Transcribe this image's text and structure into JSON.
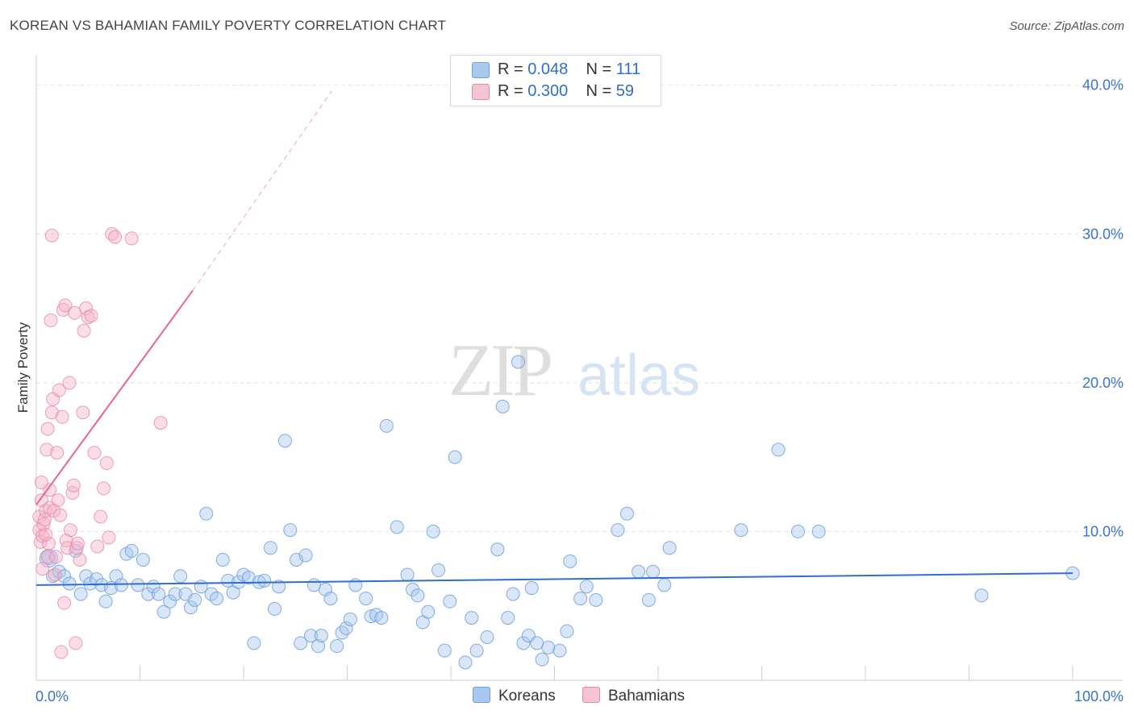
{
  "header": {
    "title": "KOREAN VS BAHAMIAN FAMILY POVERTY CORRELATION CHART",
    "source": "Source: ZipAtlas.com"
  },
  "watermark": {
    "zip": "ZIP",
    "atlas": "atlas"
  },
  "legend": {
    "koreans": {
      "r_label": "R =",
      "r_value": "0.048",
      "n_label": "N =",
      "n_value": "111"
    },
    "bahamians": {
      "r_label": "R =",
      "r_value": "0.300",
      "n_label": "N =",
      "n_value": "59"
    }
  },
  "bottom_legend": {
    "koreans": "Koreans",
    "bahamians": "Bahamians"
  },
  "colors": {
    "korean_fill": "#a9c8f0",
    "korean_stroke": "#6f9fdc",
    "korean_line": "#2c6fcf",
    "bahamian_fill": "#f5b3c8",
    "bahamian_stroke": "#e888a8",
    "bahamian_line": "#e8668e",
    "axis_text": "#3a73c8",
    "grid": "#e3e3e3"
  },
  "chart_data": {
    "type": "scatter",
    "title": "KOREAN VS BAHAMIAN FAMILY POVERTY CORRELATION CHART",
    "xlabel": "",
    "ylabel": "Family Poverty",
    "xlim": [
      0,
      100
    ],
    "ylim": [
      0,
      41.5
    ],
    "x_tick_labels": [
      {
        "value": 0,
        "label": "0.0%"
      },
      {
        "value": 100,
        "label": "100.0%"
      }
    ],
    "y_tick_labels": [
      {
        "value": 10,
        "label": "10.0%"
      },
      {
        "value": 20,
        "label": "20.0%"
      },
      {
        "value": 30,
        "label": "30.0%"
      },
      {
        "value": 40,
        "label": "40.0%"
      }
    ],
    "grid": true,
    "legend_position": "top-center",
    "series": [
      {
        "name": "Koreans",
        "r": 0.048,
        "n": 111,
        "trend": {
          "x": [
            0,
            100
          ],
          "y": [
            6.4,
            7.2
          ]
        },
        "points": [
          [
            1.2,
            8.2
          ],
          [
            1.6,
            7.0
          ],
          [
            2.2,
            7.3
          ],
          [
            2.7,
            7.0
          ],
          [
            3.2,
            6.5
          ],
          [
            3.8,
            8.7
          ],
          [
            4.3,
            5.8
          ],
          [
            4.8,
            7.0
          ],
          [
            5.2,
            6.5
          ],
          [
            5.8,
            6.8
          ],
          [
            6.3,
            6.4
          ],
          [
            6.7,
            5.3
          ],
          [
            7.2,
            6.2
          ],
          [
            7.7,
            7.0
          ],
          [
            8.2,
            6.4
          ],
          [
            8.7,
            8.5
          ],
          [
            9.2,
            8.7
          ],
          [
            9.8,
            6.4
          ],
          [
            10.3,
            8.1
          ],
          [
            10.8,
            5.8
          ],
          [
            11.3,
            6.3
          ],
          [
            11.8,
            5.8
          ],
          [
            12.3,
            4.6
          ],
          [
            12.9,
            5.3
          ],
          [
            13.4,
            5.8
          ],
          [
            13.9,
            7.0
          ],
          [
            14.4,
            5.8
          ],
          [
            14.9,
            4.9
          ],
          [
            15.3,
            5.4
          ],
          [
            15.9,
            6.3
          ],
          [
            16.4,
            11.2
          ],
          [
            16.9,
            5.8
          ],
          [
            17.4,
            5.5
          ],
          [
            18.0,
            8.1
          ],
          [
            18.5,
            6.7
          ],
          [
            19.0,
            5.9
          ],
          [
            19.5,
            6.6
          ],
          [
            20.0,
            7.1
          ],
          [
            20.5,
            6.9
          ],
          [
            21.0,
            2.5
          ],
          [
            21.5,
            6.6
          ],
          [
            22.0,
            6.7
          ],
          [
            22.6,
            8.9
          ],
          [
            23.0,
            4.8
          ],
          [
            23.4,
            6.3
          ],
          [
            24.0,
            16.1
          ],
          [
            24.5,
            10.1
          ],
          [
            25.1,
            8.1
          ],
          [
            25.5,
            2.5
          ],
          [
            26.0,
            8.4
          ],
          [
            26.5,
            3.0
          ],
          [
            26.8,
            6.4
          ],
          [
            27.2,
            2.3
          ],
          [
            27.5,
            3.0
          ],
          [
            27.9,
            6.1
          ],
          [
            28.4,
            5.5
          ],
          [
            29.0,
            2.3
          ],
          [
            29.5,
            3.2
          ],
          [
            29.9,
            3.5
          ],
          [
            30.3,
            4.1
          ],
          [
            30.8,
            6.4
          ],
          [
            31.8,
            5.5
          ],
          [
            32.3,
            4.3
          ],
          [
            32.8,
            4.4
          ],
          [
            33.3,
            4.2
          ],
          [
            33.8,
            17.1
          ],
          [
            34.8,
            10.3
          ],
          [
            35.8,
            7.1
          ],
          [
            36.3,
            6.1
          ],
          [
            36.8,
            5.7
          ],
          [
            37.3,
            3.9
          ],
          [
            37.8,
            4.6
          ],
          [
            38.3,
            10.0
          ],
          [
            38.8,
            7.4
          ],
          [
            39.4,
            2.0
          ],
          [
            39.9,
            5.3
          ],
          [
            40.4,
            15.0
          ],
          [
            41.4,
            1.2
          ],
          [
            42.0,
            4.2
          ],
          [
            42.5,
            2.0
          ],
          [
            43.5,
            2.9
          ],
          [
            44.5,
            8.8
          ],
          [
            45.0,
            18.4
          ],
          [
            45.5,
            4.2
          ],
          [
            46.0,
            5.8
          ],
          [
            46.5,
            21.4
          ],
          [
            47.0,
            2.5
          ],
          [
            47.5,
            3.0
          ],
          [
            47.8,
            6.2
          ],
          [
            48.3,
            2.5
          ],
          [
            48.8,
            1.4
          ],
          [
            49.4,
            2.2
          ],
          [
            50.5,
            2.0
          ],
          [
            51.2,
            3.3
          ],
          [
            51.5,
            8.0
          ],
          [
            52.5,
            5.5
          ],
          [
            53.1,
            6.3
          ],
          [
            54.0,
            5.4
          ],
          [
            56.1,
            10.1
          ],
          [
            57.0,
            11.2
          ],
          [
            58.1,
            7.3
          ],
          [
            59.1,
            5.4
          ],
          [
            59.5,
            7.3
          ],
          [
            60.6,
            6.4
          ],
          [
            61.1,
            8.9
          ],
          [
            68.0,
            10.1
          ],
          [
            71.6,
            15.5
          ],
          [
            73.5,
            10.0
          ],
          [
            75.5,
            10.0
          ],
          [
            91.2,
            5.7
          ],
          [
            100.0,
            7.2
          ]
        ]
      },
      {
        "name": "Bahamians",
        "r": 0.3,
        "n": 59,
        "trend": {
          "x": [
            0,
            15.1
          ],
          "y": [
            11.8,
            26.2
          ],
          "dashed_extension": {
            "x": [
              15.1,
              28.5
            ],
            "y": [
              26.2,
              39.6
            ]
          }
        },
        "points": [
          [
            0.3,
            10.1
          ],
          [
            0.3,
            11.0
          ],
          [
            0.4,
            9.3
          ],
          [
            0.5,
            12.1
          ],
          [
            0.6,
            7.5
          ],
          [
            0.6,
            9.7
          ],
          [
            0.7,
            10.5
          ],
          [
            0.8,
            10.8
          ],
          [
            0.9,
            11.4
          ],
          [
            1.0,
            15.5
          ],
          [
            1.1,
            16.9
          ],
          [
            1.1,
            8.3
          ],
          [
            1.2,
            9.2
          ],
          [
            1.3,
            11.6
          ],
          [
            1.3,
            12.8
          ],
          [
            1.4,
            24.2
          ],
          [
            1.5,
            29.9
          ],
          [
            1.5,
            18.0
          ],
          [
            1.6,
            18.9
          ],
          [
            1.7,
            11.4
          ],
          [
            1.8,
            7.1
          ],
          [
            1.9,
            8.3
          ],
          [
            2.0,
            15.3
          ],
          [
            2.1,
            12.1
          ],
          [
            2.2,
            19.5
          ],
          [
            2.3,
            11.1
          ],
          [
            2.4,
            1.9
          ],
          [
            2.5,
            17.7
          ],
          [
            2.6,
            24.9
          ],
          [
            2.7,
            5.2
          ],
          [
            2.8,
            25.2
          ],
          [
            2.9,
            9.4
          ],
          [
            3.0,
            8.9
          ],
          [
            3.2,
            20.0
          ],
          [
            3.3,
            10.1
          ],
          [
            3.5,
            12.6
          ],
          [
            3.6,
            13.1
          ],
          [
            3.7,
            24.7
          ],
          [
            3.8,
            2.5
          ],
          [
            3.9,
            8.9
          ],
          [
            4.0,
            9.2
          ],
          [
            4.2,
            8.1
          ],
          [
            4.5,
            18.0
          ],
          [
            4.6,
            23.5
          ],
          [
            4.8,
            25.0
          ],
          [
            5.0,
            24.4
          ],
          [
            5.3,
            24.5
          ],
          [
            5.6,
            15.3
          ],
          [
            5.9,
            9.0
          ],
          [
            6.2,
            11.0
          ],
          [
            6.5,
            12.9
          ],
          [
            6.8,
            14.6
          ],
          [
            7.0,
            9.6
          ],
          [
            7.3,
            30.0
          ],
          [
            7.6,
            29.8
          ],
          [
            9.2,
            29.7
          ],
          [
            12.0,
            17.3
          ],
          [
            0.5,
            13.3
          ],
          [
            0.9,
            9.8
          ]
        ]
      }
    ]
  }
}
